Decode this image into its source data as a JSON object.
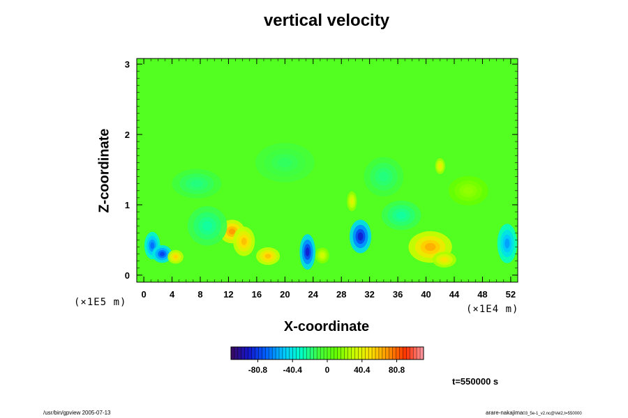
{
  "chart_data": {
    "type": "heatmap",
    "title": "vertical velocity",
    "xlabel": "X-coordinate",
    "ylabel": "Z-coordinate",
    "x_unit_label": "(×1E4 m)",
    "z_unit_label": "(×1E5 m)",
    "x_ticks": [
      "0",
      "4",
      "8",
      "12",
      "16",
      "20",
      "24",
      "28",
      "32",
      "36",
      "40",
      "44",
      "48",
      "52"
    ],
    "x_tick_values": [
      0,
      4,
      8,
      12,
      16,
      20,
      24,
      28,
      32,
      36,
      40,
      44,
      48,
      52
    ],
    "z_ticks": [
      "0",
      "1",
      "2",
      "3"
    ],
    "z_tick_values": [
      0,
      1,
      2,
      3
    ],
    "xlim": [
      -1,
      53
    ],
    "zlim": [
      -0.1,
      3.08
    ],
    "background_value": 0,
    "features": [
      {
        "x": 1.2,
        "z": 0.42,
        "sx": 0.8,
        "sz": 0.14,
        "v": -70
      },
      {
        "x": 2.6,
        "z": 0.3,
        "sx": 1.0,
        "sz": 0.09,
        "v": -80
      },
      {
        "x": 4.5,
        "z": 0.26,
        "sx": 0.8,
        "sz": 0.07,
        "v": 55
      },
      {
        "x": 12.5,
        "z": 0.62,
        "sx": 1.3,
        "sz": 0.12,
        "v": 70
      },
      {
        "x": 14.2,
        "z": 0.48,
        "sx": 1.1,
        "sz": 0.15,
        "v": 60
      },
      {
        "x": 17.6,
        "z": 0.27,
        "sx": 1.2,
        "sz": 0.09,
        "v": 60
      },
      {
        "x": 23.2,
        "z": 0.33,
        "sx": 0.8,
        "sz": 0.18,
        "v": -90
      },
      {
        "x": 25.3,
        "z": 0.28,
        "sx": 0.7,
        "sz": 0.08,
        "v": 35
      },
      {
        "x": 30.7,
        "z": 0.55,
        "sx": 1.1,
        "sz": 0.17,
        "v": -90
      },
      {
        "x": 29.5,
        "z": 1.05,
        "sx": 0.5,
        "sz": 0.1,
        "v": 40
      },
      {
        "x": 40.6,
        "z": 0.4,
        "sx": 2.2,
        "sz": 0.16,
        "v": 65
      },
      {
        "x": 42.6,
        "z": 0.22,
        "sx": 1.2,
        "sz": 0.08,
        "v": 50
      },
      {
        "x": 42.0,
        "z": 1.55,
        "sx": 0.5,
        "sz": 0.08,
        "v": 45
      },
      {
        "x": 51.5,
        "z": 0.45,
        "sx": 1.0,
        "sz": 0.2,
        "v": -60
      },
      {
        "x": 7.5,
        "z": 1.3,
        "sx": 2.5,
        "sz": 0.15,
        "v": -20
      },
      {
        "x": 20.0,
        "z": 1.6,
        "sx": 3.0,
        "sz": 0.2,
        "v": -15
      },
      {
        "x": 34.0,
        "z": 1.4,
        "sx": 2.0,
        "sz": 0.2,
        "v": -20
      },
      {
        "x": 46.0,
        "z": 1.2,
        "sx": 2.0,
        "sz": 0.15,
        "v": 20
      },
      {
        "x": 9.0,
        "z": 0.7,
        "sx": 2.0,
        "sz": 0.2,
        "v": -25
      },
      {
        "x": 36.5,
        "z": 0.85,
        "sx": 2.0,
        "sz": 0.15,
        "v": -25
      }
    ],
    "colorbar": {
      "vmin": -112,
      "vmax": 112,
      "tick_labels": [
        "-80.8",
        "-40.4",
        "0",
        "40.4",
        "80.8"
      ],
      "tick_values": [
        -80.8,
        -40.4,
        0,
        40.4,
        80.8
      ],
      "stops": [
        "#3a0a60",
        "#1414c8",
        "#0060ff",
        "#00c8ff",
        "#00ffc8",
        "#40ff40",
        "#66ff00",
        "#c8ff00",
        "#ffe000",
        "#ff9000",
        "#ff3000",
        "#ff9aa8"
      ]
    }
  },
  "time_label": "t=550000 s",
  "footer_left": "/usr/bin/gpview 2005-07-13",
  "footer_right": "arare-nakajima",
  "footer_right_sub": "03_5e-1_v2.nc@Vel2,t=550000"
}
